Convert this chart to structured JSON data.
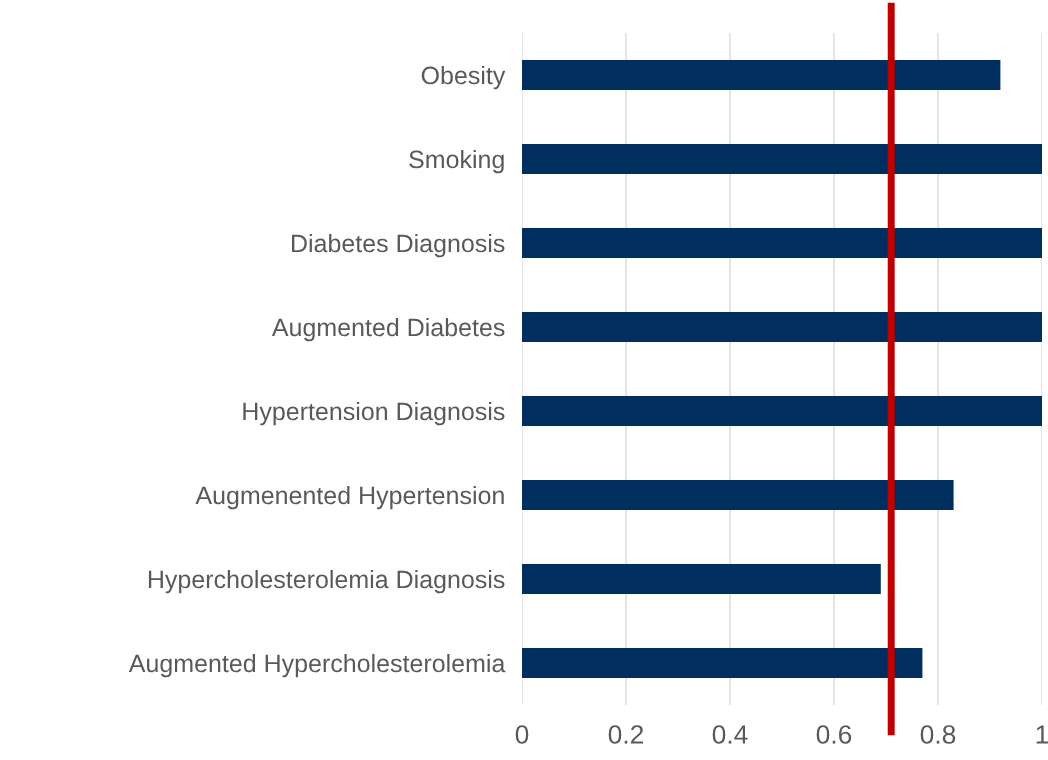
{
  "chart_data": {
    "type": "bar",
    "orientation": "horizontal",
    "categories": [
      "Obesity",
      "Smoking",
      "Diabetes Diagnosis",
      "Augmented Diabetes",
      "Hypertension Diagnosis",
      "Augmenented Hypertension",
      "Hypercholesterolemia Diagnosis",
      "Augmented Hypercholesterolemia"
    ],
    "values": [
      0.92,
      1,
      1,
      1,
      1,
      0.83,
      0.69,
      0.77
    ],
    "color": "#002f5f",
    "xlim": [
      0,
      1
    ],
    "xticks": [
      0,
      0.2,
      0.4,
      0.6,
      0.8,
      1
    ],
    "grid": "x",
    "ref_lines": [
      {
        "axis": "x",
        "value": 0.71,
        "label": null,
        "color": "#c00000",
        "line_style": "solid"
      }
    ]
  }
}
